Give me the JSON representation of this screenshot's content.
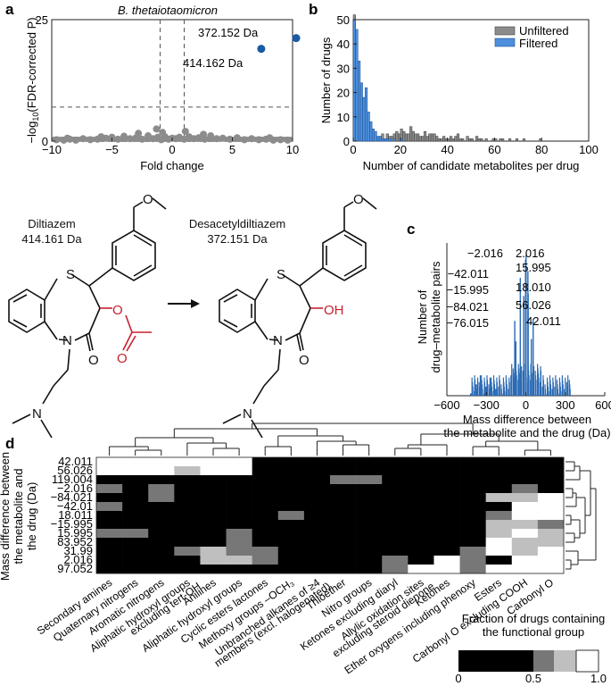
{
  "panel_a": {
    "letter": "a",
    "title": "B. thetaiotaomicron",
    "xlabel": "Fold change",
    "ylabel_pre": "−log",
    "ylabel_sub": "10",
    "ylabel_post": "(FDR-corrected P)",
    "annotations": [
      "372.152 Da",
      "414.162 Da"
    ]
  },
  "panel_b": {
    "letter": "b",
    "xlabel": "Number of candidate metabolites per drug",
    "ylabel": "Number of drugs",
    "legend": [
      "Unfiltered",
      "Filtered"
    ]
  },
  "chem": {
    "drug1_name": "Diltiazem",
    "drug1_mass": "414.161 Da",
    "drug2_name": "Desacetyldiltiazem",
    "drug2_mass": "372.151 Da",
    "atoms": {
      "S": "S",
      "N": "N",
      "O": "O",
      "OH": "OH"
    }
  },
  "panel_c": {
    "letter": "c",
    "ylabel1": "Number of",
    "ylabel2": "drug–metabolite pairs",
    "xlabel1": "Mass difference between",
    "xlabel2": "the metabolite and the drug (Da)",
    "labels": [
      "−2.016",
      "2.016",
      "−42.011",
      "15.995",
      "−15.995",
      "18.010",
      "−84.021",
      "56.026",
      "−76.015",
      "42.011"
    ]
  },
  "panel_d": {
    "letter": "d",
    "ylabel1": "Mass difference between",
    "ylabel2": "the metabolite and",
    "ylabel3": "the drug (Da)",
    "legend_title1": "Fraction of drugs containing",
    "legend_title2": "the functional group",
    "legend_ticks": [
      "0",
      "0.5",
      "1.0"
    ]
  },
  "colors": {
    "unfiltered": "#8c8c8c",
    "filtered": "#2a6ab5",
    "accent_red": "#c8202f",
    "point": "#1a5aa6"
  },
  "chart_data": [
    {
      "type": "scatter",
      "title": "B. thetaiotaomicron",
      "xlabel": "Fold change",
      "ylabel": "−log10(FDR-corrected P)",
      "xlim": [
        -10,
        10
      ],
      "ylim": [
        0,
        25
      ],
      "xticks": [
        "−10",
        "−5",
        "0",
        "5",
        "10"
      ],
      "yticks": [
        "0",
        "25"
      ],
      "threshold_y": 7,
      "threshold_x": [
        -1,
        1
      ],
      "highlight": [
        {
          "x": 10.3,
          "y": 21.2,
          "label": "372.152 Da"
        },
        {
          "x": 7.4,
          "y": 19.0,
          "label": "414.162 Da"
        }
      ],
      "grey_points": [
        [
          -9.6,
          0.3
        ],
        [
          -9,
          0.2
        ],
        [
          -8.5,
          0.4
        ],
        [
          -8,
          0.2
        ],
        [
          -7.4,
          0.5
        ],
        [
          -6.8,
          0.3
        ],
        [
          -6.2,
          0.4
        ],
        [
          -5.5,
          0.6
        ],
        [
          -5,
          0.8
        ],
        [
          -4.5,
          0.4
        ],
        [
          -4,
          1.0
        ],
        [
          -3.5,
          0.5
        ],
        [
          -3,
          0.7
        ],
        [
          -2.5,
          0.4
        ],
        [
          -2,
          1.1
        ],
        [
          -1.6,
          0.5
        ],
        [
          -1.2,
          0.8
        ],
        [
          -0.9,
          0.3
        ],
        [
          -0.6,
          0.9
        ],
        [
          -0.3,
          0.4
        ],
        [
          0,
          0.6
        ],
        [
          0.3,
          0.5
        ],
        [
          0.6,
          0.8
        ],
        [
          1,
          0.4
        ],
        [
          1.4,
          0.9
        ],
        [
          1.8,
          0.5
        ],
        [
          2.2,
          0.7
        ],
        [
          2.7,
          0.4
        ],
        [
          3.2,
          1.1
        ],
        [
          3.7,
          0.5
        ],
        [
          4.2,
          0.6
        ],
        [
          4.8,
          0.4
        ],
        [
          5.4,
          0.7
        ],
        [
          6,
          0.3
        ],
        [
          6.6,
          0.5
        ],
        [
          7.2,
          0.3
        ],
        [
          7.8,
          0.4
        ],
        [
          8.4,
          0.2
        ],
        [
          9,
          0.3
        ],
        [
          9.6,
          0.2
        ],
        [
          -1.3,
          2.5
        ],
        [
          -0.8,
          1.8
        ],
        [
          1.1,
          2.0
        ],
        [
          -2.8,
          1.6
        ],
        [
          2.6,
          1.4
        ],
        [
          -5.9,
          0.9
        ],
        [
          -8.7,
          0.6
        ],
        [
          8.1,
          0.7
        ]
      ]
    },
    {
      "type": "bar",
      "xlabel": "Number of candidate metabolites per drug",
      "ylabel": "Number of drugs",
      "xlim": [
        0,
        100
      ],
      "ylim": [
        0,
        50
      ],
      "xticks": [
        "0",
        "20",
        "40",
        "60",
        "80",
        "100"
      ],
      "yticks": [
        "0",
        "10",
        "20",
        "30",
        "40",
        "50"
      ],
      "series": [
        {
          "name": "Unfiltered",
          "values": [
            52,
            20,
            11,
            8,
            6,
            5,
            4,
            3,
            2,
            2,
            1,
            2,
            3,
            1,
            3,
            2,
            2,
            3,
            4,
            3,
            5,
            4,
            3,
            3,
            6,
            4,
            3,
            3,
            2,
            2,
            4,
            2,
            3,
            3,
            3,
            2,
            1,
            1,
            2,
            1,
            1,
            2,
            1,
            2,
            3,
            1,
            1,
            0,
            2,
            1,
            1,
            0,
            2,
            1,
            1,
            0,
            1,
            0,
            0,
            1,
            1,
            0,
            1,
            1,
            0,
            0,
            1,
            0,
            0,
            1,
            0,
            0,
            1,
            0,
            0,
            0,
            0,
            0,
            0,
            1,
            0,
            0,
            0,
            0,
            0,
            0,
            0,
            0,
            0,
            0,
            0,
            0,
            0,
            0,
            0,
            0,
            0,
            0,
            0,
            0
          ]
        },
        {
          "name": "Filtered",
          "values": [
            50,
            46,
            33,
            24,
            18,
            22,
            12,
            8,
            5,
            4,
            2,
            2,
            1,
            1,
            1,
            1,
            0,
            1,
            0,
            0,
            1,
            0,
            0,
            0,
            0,
            0,
            0,
            0,
            0,
            0,
            0,
            0,
            0,
            0,
            0,
            0,
            0,
            0,
            0,
            0,
            0,
            0,
            0,
            0,
            0,
            0,
            0,
            0,
            0,
            0,
            0,
            0,
            0,
            0,
            0,
            0,
            0,
            0,
            0,
            0,
            0,
            0,
            0,
            0,
            0,
            0,
            0,
            0,
            0,
            0,
            0,
            0,
            0,
            0,
            0,
            0,
            0,
            0,
            0,
            0,
            0,
            0,
            0,
            0,
            0,
            0,
            0,
            0,
            0,
            0,
            0,
            0,
            0,
            0,
            0,
            0,
            0,
            0,
            0,
            0
          ]
        }
      ]
    },
    {
      "type": "bar",
      "xlabel": "Mass difference between the metabolite and the drug (Da)",
      "ylabel": "Number of drug–metabolite pairs",
      "xlim": [
        -600,
        600
      ],
      "xticks": [
        "−600",
        "−300",
        "0",
        "300",
        "600"
      ],
      "peaks": [
        {
          "x": -2.016,
          "y": 60
        },
        {
          "x": 2.016,
          "y": 62
        },
        {
          "x": -42.011,
          "y": 52
        },
        {
          "x": 15.995,
          "y": 55
        },
        {
          "x": -15.995,
          "y": 44
        },
        {
          "x": 18.01,
          "y": 45
        },
        {
          "x": -84.021,
          "y": 33
        },
        {
          "x": 56.026,
          "y": 34
        },
        {
          "x": -76.015,
          "y": 24
        },
        {
          "x": 42.011,
          "y": 25
        }
      ]
    },
    {
      "type": "heatmap",
      "rows": [
        "42.011",
        "56.026",
        "119.004",
        "−2.016",
        "−84.021",
        "−42.01",
        "18.011",
        "−15.995",
        "15.995",
        "83.952",
        "31.99",
        "2.016",
        "97.052"
      ],
      "columns": [
        "Secondary amines",
        "Quaternary nitrogens",
        "Aromatic nitrogens",
        "Aliphatic hydroxyl groups excluding tert-OH",
        "Anilines",
        "Aliphatic hydroxyl groups",
        "Cyclic esters lactones",
        "Methoxy groups –OCH3",
        "Unbranched alkanes of ≥4 members (excl. halogenated)",
        "Thioether",
        "Nitro groups",
        "Ketones excluding diaryl",
        "Allylic oxidation sites excluding steroid dienone",
        "Ketones",
        "Ether oxygens including phenoxy",
        "Esters",
        "Carbonyl O excluding COOH",
        "Carbonyl O"
      ],
      "col_labels": [
        [
          "Secondary amines"
        ],
        [
          "Quaternary nitrogens"
        ],
        [
          "Aromatic nitrogens"
        ],
        [
          "Aliphatic hydroxyl groups",
          "excluding tert-OH"
        ],
        [
          "Anilines"
        ],
        [
          "Aliphatic hydroxyl groups"
        ],
        [
          "Cyclic esters lactones"
        ],
        [
          "Methoxy groups –OCH₃"
        ],
        [
          "Unbranched alkanes of ≥4",
          "members (excl. halogenated)"
        ],
        [
          "Thioether"
        ],
        [
          "Nitro groups"
        ],
        [
          "Ketones excluding diaryl"
        ],
        [
          "Allylic oxidation sites",
          "excluding steroid dienone"
        ],
        [
          "Ketones"
        ],
        [
          "Ether oxygens including phenoxy"
        ],
        [
          "Esters"
        ],
        [
          "Carbonyl O excluding COOH"
        ],
        [
          "Carbonyl O"
        ]
      ],
      "values": [
        [
          1,
          1,
          1,
          1,
          1,
          1,
          0,
          0,
          0,
          0,
          0,
          0,
          0,
          0,
          0,
          0,
          0,
          0
        ],
        [
          1,
          1,
          0.9,
          0.6,
          0.9,
          0.9,
          0,
          0,
          0,
          0,
          0,
          0,
          0,
          0,
          0,
          0,
          0,
          0
        ],
        [
          0,
          0,
          0,
          0,
          0,
          0,
          0,
          0,
          0,
          0.5,
          0.5,
          0,
          0,
          0,
          0,
          0,
          0,
          0
        ],
        [
          0.5,
          0,
          0.5,
          0,
          0,
          0,
          0,
          0,
          0,
          0,
          0,
          0,
          0,
          0,
          0,
          0,
          0.5,
          0
        ],
        [
          0,
          0,
          0.5,
          0,
          0,
          0,
          0,
          0,
          0,
          0,
          0,
          0,
          0,
          0,
          0,
          0.7,
          0.7,
          0.9
        ],
        [
          0.5,
          0,
          0,
          0,
          0,
          0,
          0,
          0,
          0,
          0,
          0,
          0,
          0,
          0,
          0,
          0,
          1,
          1
        ],
        [
          0,
          0,
          0,
          0,
          0,
          0,
          0,
          0.5,
          0,
          0,
          0,
          0,
          0,
          0,
          0,
          0.5,
          1,
          1
        ],
        [
          0,
          0,
          0,
          0,
          0,
          0,
          0,
          0,
          0,
          0,
          0,
          0,
          0,
          0,
          0,
          0.8,
          0.8,
          0.5
        ],
        [
          0.5,
          0.5,
          0,
          0,
          0,
          0.5,
          0,
          0,
          0,
          0,
          0,
          0,
          0,
          0,
          0,
          0.8,
          1,
          0.8
        ],
        [
          0,
          0,
          0,
          0,
          0,
          0.5,
          0,
          0,
          0,
          0,
          0,
          0,
          0,
          0,
          0,
          1,
          0.8,
          0.8
        ],
        [
          0,
          0,
          0,
          0.5,
          0.8,
          0.5,
          0.5,
          0,
          0,
          0,
          0,
          0,
          0,
          0,
          0.5,
          1,
          0.8,
          1
        ],
        [
          0,
          0,
          0,
          0,
          0.8,
          0.8,
          0.5,
          0,
          0,
          0,
          0,
          0.5,
          0,
          1,
          0.5,
          0,
          1,
          1
        ],
        [
          0,
          0,
          0,
          0,
          0,
          0,
          0,
          0,
          0,
          0,
          0,
          0.5,
          1,
          1,
          0.5,
          1,
          1,
          1
        ]
      ],
      "legend_ticks": [
        "0",
        "0.5",
        "1.0"
      ]
    }
  ]
}
